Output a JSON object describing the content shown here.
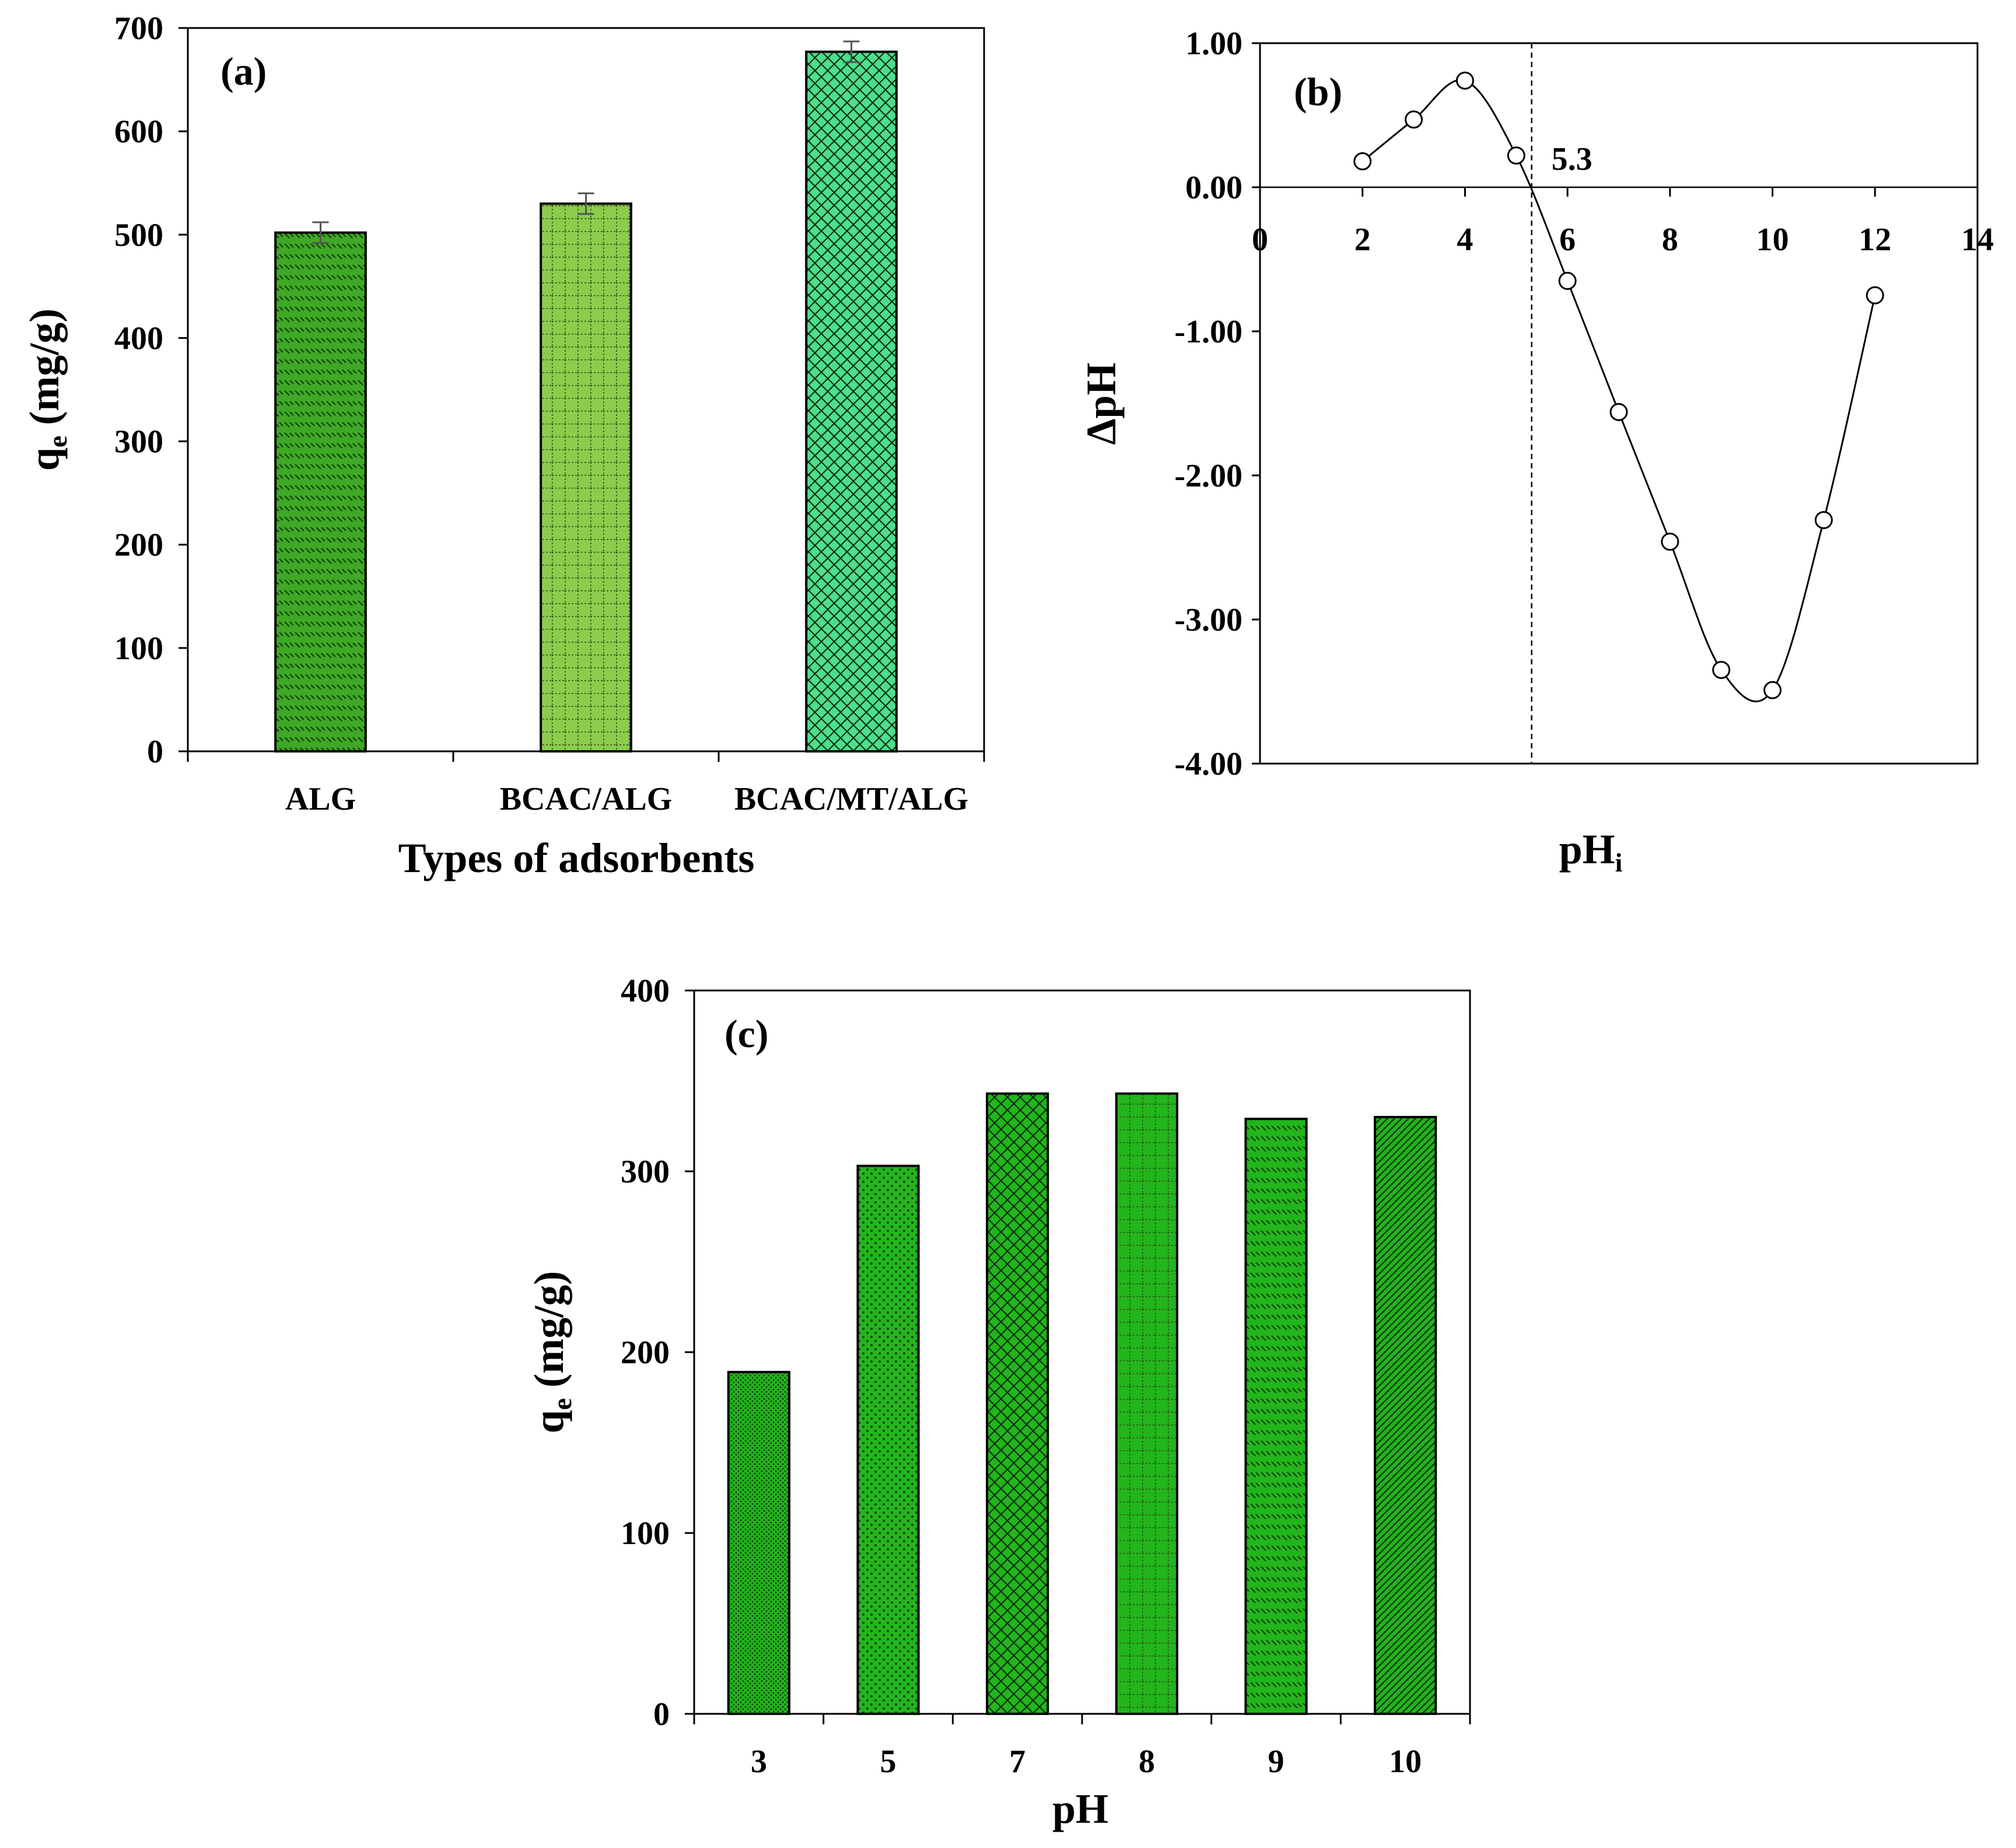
{
  "chart_data": [
    {
      "type": "bar",
      "panel_label": "(a)",
      "categories": [
        "ALG",
        "BCAC/ALG",
        "BCAC/MT/ALG"
      ],
      "values": [
        502,
        530,
        677
      ],
      "errors": [
        10,
        10,
        10
      ],
      "colors": [
        "#3fa826",
        "#8ccc4c",
        "#4dde8c"
      ],
      "patterns": [
        "dashes",
        "grid",
        "crosshatch"
      ],
      "ylim": [
        0,
        700
      ],
      "yticks": [
        "0",
        "100",
        "200",
        "300",
        "400",
        "500",
        "600",
        "700"
      ],
      "ylabel_main": "q",
      "ylabel_sub": "e",
      "ylabel_rest": " (mg/g)",
      "xlabel": "Types of adsorbents"
    },
    {
      "type": "line",
      "panel_label": "(b)",
      "x": [
        2,
        3,
        4,
        5,
        6,
        7,
        8,
        9,
        10,
        11,
        12
      ],
      "y": [
        0.18,
        0.47,
        0.74,
        0.22,
        -0.65,
        -1.56,
        -2.46,
        -3.35,
        -3.49,
        -2.31,
        -0.75
      ],
      "xlim": [
        0,
        14
      ],
      "ylim": [
        -4,
        1
      ],
      "xticks": [
        "0",
        "2",
        "4",
        "6",
        "8",
        "10",
        "12",
        "14"
      ],
      "yticks": [
        "1.00",
        "0.00",
        "-1.00",
        "-2.00",
        "-3.00",
        "-4.00"
      ],
      "ylabel": "ΔpH",
      "xlabel_main": "pH",
      "xlabel_sub": "i",
      "pzc": 5.3,
      "pzc_label": "5.3"
    },
    {
      "type": "bar",
      "panel_label": "(c)",
      "categories": [
        "3",
        "5",
        "7",
        "8",
        "9",
        "10"
      ],
      "values": [
        189,
        303,
        343,
        343,
        329,
        330
      ],
      "colors": [
        "#22b51c",
        "#22b51c",
        "#22b51c",
        "#22b51c",
        "#22b51c",
        "#22b51c"
      ],
      "patterns": [
        "fine-dots",
        "dots",
        "crosshatch",
        "grid",
        "dashes",
        "diagonal"
      ],
      "ylim": [
        0,
        400
      ],
      "yticks": [
        "0",
        "100",
        "200",
        "300",
        "400"
      ],
      "ylabel_main": "q",
      "ylabel_sub": "e",
      "ylabel_rest": " (mg/g)",
      "xlabel": "pH"
    }
  ]
}
